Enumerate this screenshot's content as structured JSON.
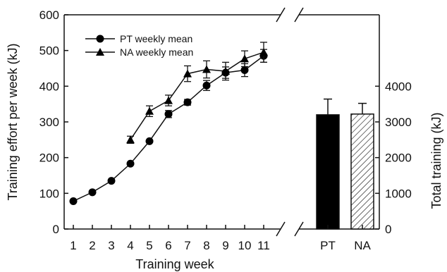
{
  "chart_data": {
    "type": "line",
    "xlabel": "Training week",
    "ylabel_left": "Training effort per week (kJ)",
    "ylabel_right": "Total training (kJ)",
    "x_ticks": [
      "1",
      "2",
      "3",
      "4",
      "5",
      "6",
      "7",
      "8",
      "9",
      "10",
      "11"
    ],
    "ylim_left": [
      0,
      600
    ],
    "y_ticks_left": [
      "0",
      "100",
      "200",
      "300",
      "400",
      "500",
      "600"
    ],
    "ylim_right": [
      0,
      6000
    ],
    "y_ticks_right": [
      "0",
      "1000",
      "2000",
      "3000",
      "4000"
    ],
    "grid": false,
    "legend_position": "top-left",
    "series": [
      {
        "name": "PT weekly mean",
        "marker": "circle",
        "x": [
          1,
          2,
          3,
          4,
          5,
          6,
          7,
          8,
          9,
          10,
          11
        ],
        "values": [
          78,
          103,
          135,
          183,
          246,
          322,
          355,
          402,
          438,
          445,
          485
        ],
        "errors": [
          0,
          0,
          0,
          0,
          0,
          10,
          8,
          14,
          16,
          18,
          18
        ]
      },
      {
        "name": "NA weekly mean",
        "marker": "triangle",
        "x": [
          4,
          5,
          6,
          7,
          8,
          9,
          10,
          11
        ],
        "values": [
          250,
          330,
          360,
          435,
          447,
          442,
          477,
          495
        ],
        "errors": [
          10,
          15,
          15,
          22,
          24,
          25,
          22,
          28
        ]
      }
    ],
    "bars": {
      "categories": [
        "PT",
        "NA"
      ],
      "values": [
        3200,
        3220
      ],
      "errors": [
        440,
        300
      ],
      "colors": [
        "#000000",
        "#ffffff"
      ],
      "patterns": [
        "solid",
        "hatched"
      ]
    }
  }
}
